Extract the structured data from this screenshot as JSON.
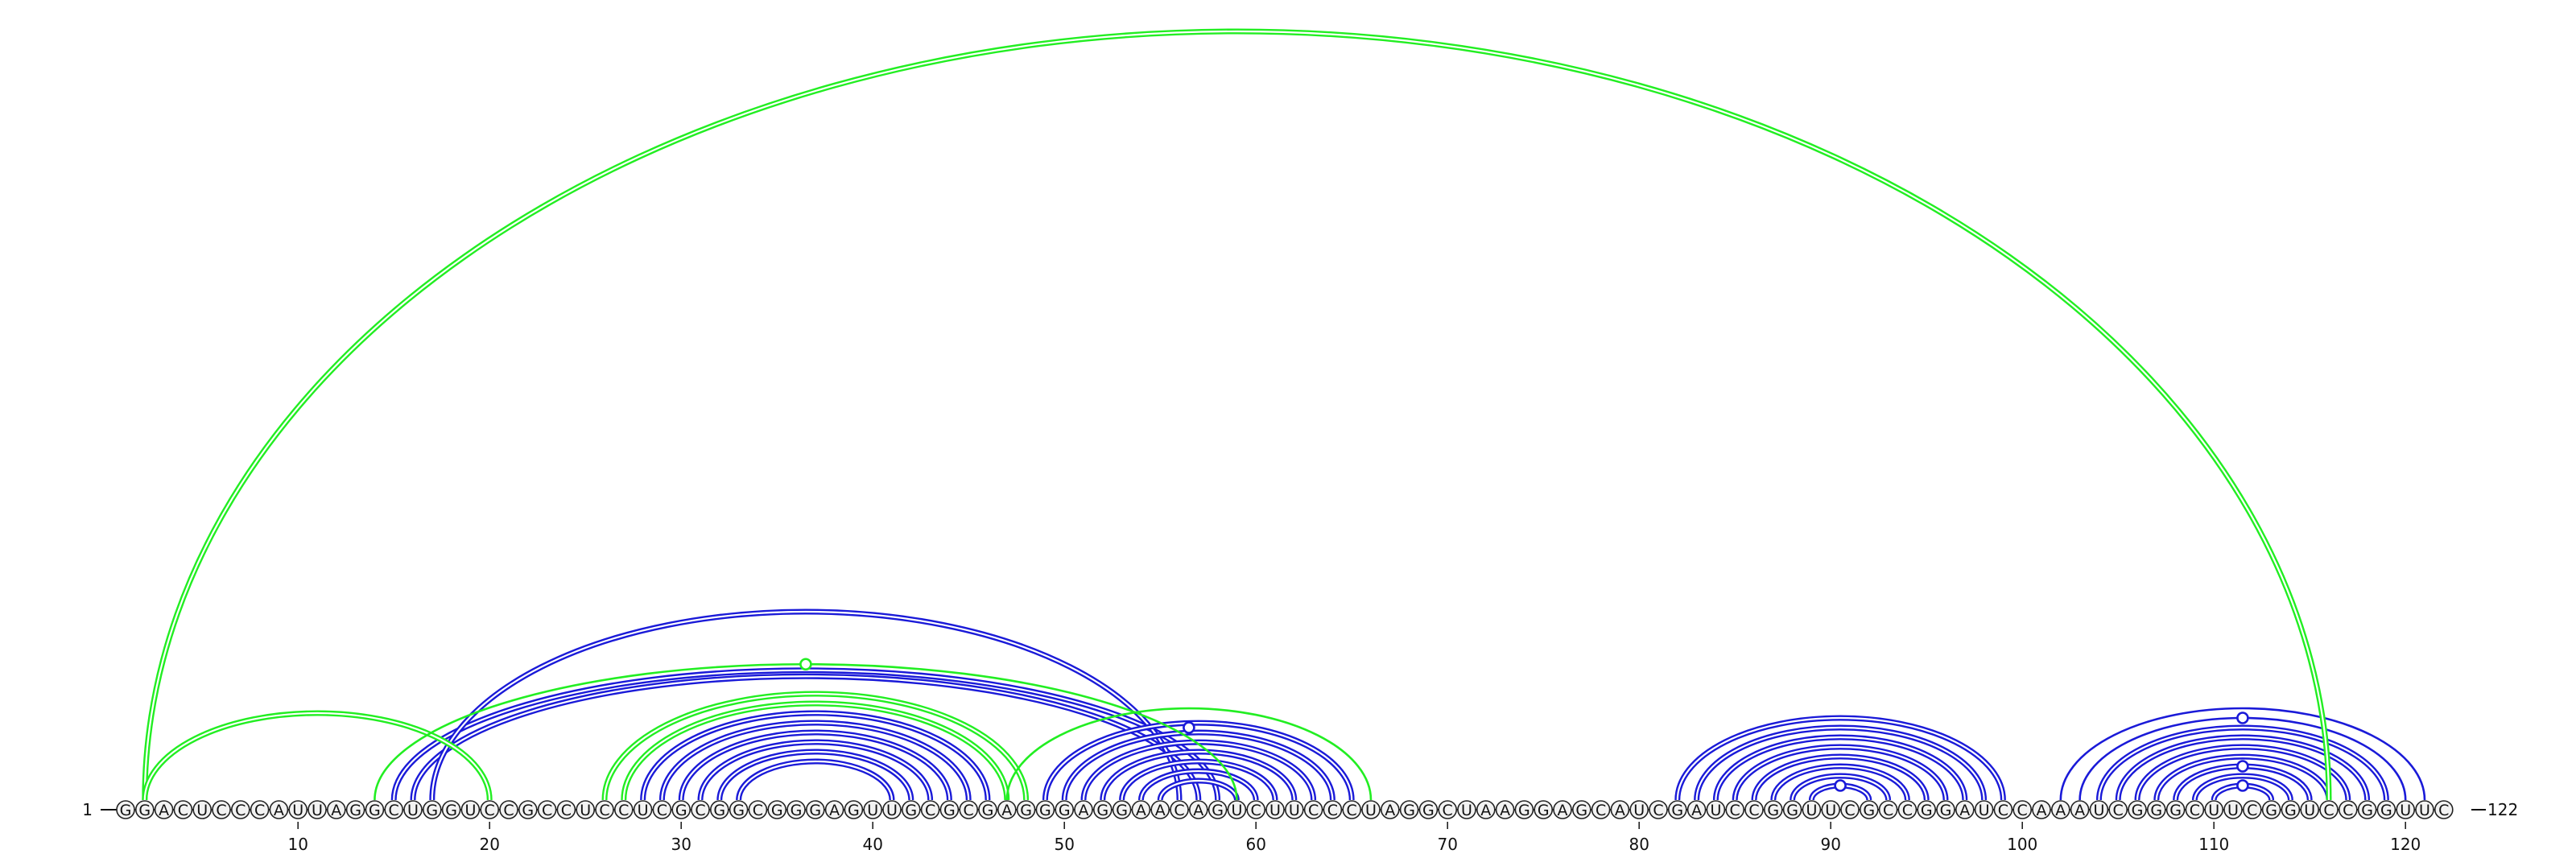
{
  "sequence": "GGACUCCCAUUAGGCUGGUCCGCCUCCUCGCGGCGGGAGUUGCGCGAGGGAGGAACAGUCUUCCCUAGGCUAAGGAGCAUCGAUCCGGUUCGCCGGAUCCAAAUCGGGCUUCGGUCCGGUUC",
  "start_label": "1",
  "end_label": "122",
  "ticks": [
    "10",
    "20",
    "30",
    "40",
    "50",
    "60",
    "70",
    "80",
    "90",
    "100",
    "110",
    "120"
  ],
  "colors": {
    "green": "#22ee22",
    "blue": "#1a1ad8",
    "nucleotide_fill": "#f2f2f2",
    "nucleotide_stroke": "#222222"
  },
  "arcs_green": [
    {
      "i": 2,
      "j": 116,
      "double": true
    },
    {
      "i": 2,
      "j": 20,
      "double": true
    },
    {
      "i": 14,
      "j": 59,
      "double": false
    },
    {
      "i": 26,
      "j": 48,
      "double": true
    },
    {
      "i": 27,
      "j": 47,
      "double": true
    },
    {
      "i": 47,
      "j": 66,
      "double": false
    }
  ],
  "arcs_blue": [
    {
      "i": 15,
      "j": 58,
      "double": true
    },
    {
      "i": 16,
      "j": 57,
      "double": true
    },
    {
      "i": 17,
      "j": 56,
      "double": true
    },
    {
      "i": 28,
      "j": 46,
      "double": true
    },
    {
      "i": 29,
      "j": 45,
      "double": true
    },
    {
      "i": 30,
      "j": 44,
      "double": true
    },
    {
      "i": 31,
      "j": 43,
      "double": true
    },
    {
      "i": 32,
      "j": 42,
      "double": true
    },
    {
      "i": 33,
      "j": 41,
      "double": true
    },
    {
      "i": 49,
      "j": 65,
      "double": true
    },
    {
      "i": 50,
      "j": 64,
      "double": true
    },
    {
      "i": 51,
      "j": 63,
      "double": true
    },
    {
      "i": 52,
      "j": 62,
      "double": true
    },
    {
      "i": 53,
      "j": 61,
      "double": true
    },
    {
      "i": 54,
      "j": 60,
      "double": true
    },
    {
      "i": 55,
      "j": 59,
      "double": true
    },
    {
      "i": 82,
      "j": 99,
      "double": true
    },
    {
      "i": 83,
      "j": 98,
      "double": true
    },
    {
      "i": 84,
      "j": 97,
      "double": true
    },
    {
      "i": 85,
      "j": 96,
      "double": true
    },
    {
      "i": 86,
      "j": 95,
      "double": true
    },
    {
      "i": 87,
      "j": 94,
      "double": true
    },
    {
      "i": 88,
      "j": 93,
      "double": true
    },
    {
      "i": 89,
      "j": 92,
      "double": true
    },
    {
      "i": 102,
      "j": 121,
      "double": false
    },
    {
      "i": 103,
      "j": 120,
      "double": false
    },
    {
      "i": 104,
      "j": 119,
      "double": true
    },
    {
      "i": 105,
      "j": 118,
      "double": true
    },
    {
      "i": 106,
      "j": 117,
      "double": true
    },
    {
      "i": 107,
      "j": 116,
      "double": true
    },
    {
      "i": 108,
      "j": 115,
      "double": true
    },
    {
      "i": 109,
      "j": 114,
      "double": true
    },
    {
      "i": 110,
      "j": 113,
      "double": true
    }
  ],
  "markers": [
    {
      "i": 14,
      "j": 59,
      "color": "green"
    },
    {
      "i": 49,
      "j": 64,
      "color": "blue"
    },
    {
      "i": 89,
      "j": 92,
      "color": "blue"
    },
    {
      "i": 103,
      "j": 120,
      "color": "blue"
    },
    {
      "i": 108,
      "j": 115,
      "color": "blue"
    },
    {
      "i": 110,
      "j": 113,
      "color": "blue"
    }
  ]
}
